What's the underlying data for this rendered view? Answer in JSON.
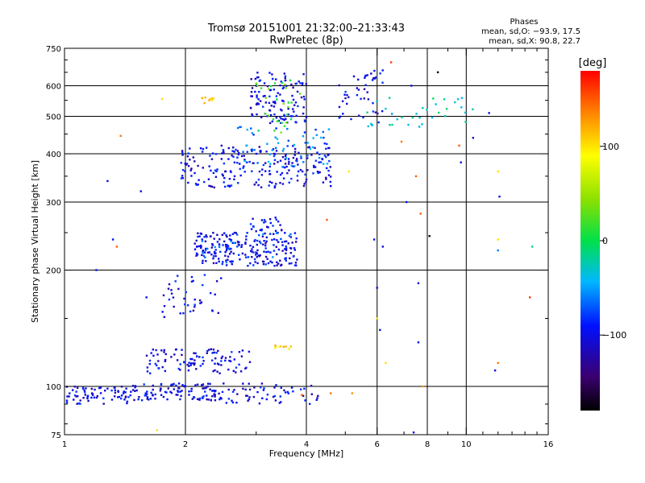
{
  "chart_data": {
    "type": "scatter",
    "title": "Tromsø 20151001 21:32:00–21:33:43",
    "subtitle": "RwPretec (8p)",
    "xlabel": "Frequency [MHz]",
    "ylabel": "Stationary phase Virtual Height [km]",
    "xscale": "log",
    "yscale": "log",
    "xlim": [
      1,
      16
    ],
    "ylim": [
      75,
      750
    ],
    "x_ticks": [
      1,
      2,
      4,
      6,
      8,
      10,
      16
    ],
    "x_tick_labels": [
      "1",
      "2",
      "4",
      "6",
      "8",
      "10",
      "16"
    ],
    "y_ticks": [
      75,
      100,
      200,
      300,
      400,
      500,
      600,
      750
    ],
    "y_tick_labels": [
      "75",
      "100",
      "200",
      "300",
      "400",
      "500",
      "600",
      "750"
    ],
    "x_gridlines": [
      2,
      4,
      6,
      8,
      10
    ],
    "y_gridlines": [
      100,
      200,
      300,
      400,
      500,
      600
    ],
    "grid": true,
    "phase_stats": {
      "heading": "Phases",
      "line_o": "mean, sd,O: −93.9, 17.5",
      "line_x": "mean, sd,X:  90.8, 22.7"
    },
    "colorbar": {
      "label": "[deg]",
      "range": [
        -180,
        180
      ],
      "ticks": [
        100,
        0,
        -100
      ],
      "tick_labels": [
        "100",
        "0",
        "−100"
      ]
    },
    "clusters": [
      {
        "x": [
          0.95,
          1.45
        ],
        "y": [
          90,
          100
        ],
        "phase": -100,
        "count": 80
      },
      {
        "x": [
          1.45,
          2.5
        ],
        "y": [
          92,
          102
        ],
        "phase": -100,
        "count": 110
      },
      {
        "x": [
          2.5,
          4.3
        ],
        "y": [
          90,
          102
        ],
        "phase": -100,
        "count": 55
      },
      {
        "x": [
          1.6,
          2.9
        ],
        "y": [
          108,
          125
        ],
        "phase": -100,
        "count": 100
      },
      {
        "x": [
          1.7,
          2.5
        ],
        "y": [
          150,
          195
        ],
        "phase": -100,
        "count": 40
      },
      {
        "x": [
          2.1,
          3.8
        ],
        "y": [
          205,
          250
        ],
        "phase": -100,
        "count": 200
      },
      {
        "x": [
          2.1,
          3.8
        ],
        "y": [
          205,
          250
        ],
        "phase": -70,
        "count": 40
      },
      {
        "x": [
          2.9,
          3.5
        ],
        "y": [
          250,
          275
        ],
        "phase": -100,
        "count": 25
      },
      {
        "x": [
          1.95,
          4.6
        ],
        "y": [
          325,
          420
        ],
        "phase": -100,
        "count": 220
      },
      {
        "x": [
          2.7,
          4.6
        ],
        "y": [
          370,
          470
        ],
        "phase": -60,
        "count": 60
      },
      {
        "x": [
          2.9,
          4.0
        ],
        "y": [
          480,
          650
        ],
        "phase": -100,
        "count": 120
      },
      {
        "x": [
          3.0,
          3.9
        ],
        "y": [
          450,
          620
        ],
        "phase": 20,
        "count": 30
      },
      {
        "x": [
          4.8,
          6.2
        ],
        "y": [
          480,
          660
        ],
        "phase": -100,
        "count": 45
      },
      {
        "x": [
          5.5,
          10.5
        ],
        "y": [
          470,
          560
        ],
        "phase": -30,
        "count": 35
      },
      {
        "x": [
          2.2,
          2.4
        ],
        "y": [
          540,
          560
        ],
        "phase": 100,
        "count": 8
      },
      {
        "x": [
          3.3,
          3.7
        ],
        "y": [
          125,
          128
        ],
        "phase": 110,
        "count": 10
      }
    ],
    "points": [
      {
        "x": 1.38,
        "y": 445,
        "phase": 140
      },
      {
        "x": 1.75,
        "y": 555,
        "phase": 100
      },
      {
        "x": 1.28,
        "y": 340,
        "phase": -100
      },
      {
        "x": 1.55,
        "y": 320,
        "phase": -100
      },
      {
        "x": 1.32,
        "y": 240,
        "phase": -90
      },
      {
        "x": 1.35,
        "y": 230,
        "phase": 150
      },
      {
        "x": 1.2,
        "y": 200,
        "phase": -100
      },
      {
        "x": 1.6,
        "y": 170,
        "phase": -100
      },
      {
        "x": 1.7,
        "y": 77,
        "phase": 100
      },
      {
        "x": 3.9,
        "y": 95,
        "phase": 150
      },
      {
        "x": 4.6,
        "y": 96,
        "phase": 140
      },
      {
        "x": 5.2,
        "y": 96,
        "phase": 130
      },
      {
        "x": 4.5,
        "y": 270,
        "phase": 150
      },
      {
        "x": 4.3,
        "y": 380,
        "phase": -100
      },
      {
        "x": 4.6,
        "y": 330,
        "phase": -100
      },
      {
        "x": 5.1,
        "y": 360,
        "phase": 100
      },
      {
        "x": 5.9,
        "y": 240,
        "phase": -100
      },
      {
        "x": 6.2,
        "y": 230,
        "phase": -100
      },
      {
        "x": 6.0,
        "y": 180,
        "phase": -100
      },
      {
        "x": 6.1,
        "y": 140,
        "phase": -100
      },
      {
        "x": 6.3,
        "y": 115,
        "phase": 100
      },
      {
        "x": 6.0,
        "y": 150,
        "phase": 100
      },
      {
        "x": 6.5,
        "y": 690,
        "phase": 160
      },
      {
        "x": 6.9,
        "y": 430,
        "phase": 140
      },
      {
        "x": 7.1,
        "y": 300,
        "phase": -100
      },
      {
        "x": 7.3,
        "y": 600,
        "phase": -100
      },
      {
        "x": 7.5,
        "y": 350,
        "phase": 150
      },
      {
        "x": 7.7,
        "y": 280,
        "phase": 150
      },
      {
        "x": 7.6,
        "y": 185,
        "phase": -100
      },
      {
        "x": 7.8,
        "y": 100,
        "phase": 130
      },
      {
        "x": 7.6,
        "y": 130,
        "phase": -100
      },
      {
        "x": 7.4,
        "y": 76,
        "phase": -100
      },
      {
        "x": 8.1,
        "y": 245,
        "phase": -170
      },
      {
        "x": 8.5,
        "y": 650,
        "phase": -170
      },
      {
        "x": 9.6,
        "y": 420,
        "phase": 150
      },
      {
        "x": 9.7,
        "y": 380,
        "phase": -100
      },
      {
        "x": 10.4,
        "y": 440,
        "phase": -100
      },
      {
        "x": 11.4,
        "y": 510,
        "phase": -100
      },
      {
        "x": 12.0,
        "y": 360,
        "phase": 100
      },
      {
        "x": 12.1,
        "y": 310,
        "phase": -100
      },
      {
        "x": 12.0,
        "y": 240,
        "phase": 100
      },
      {
        "x": 12.0,
        "y": 225,
        "phase": -60
      },
      {
        "x": 12.0,
        "y": 115,
        "phase": 140
      },
      {
        "x": 11.8,
        "y": 110,
        "phase": -100
      },
      {
        "x": 14.6,
        "y": 230,
        "phase": -10
      },
      {
        "x": 14.4,
        "y": 170,
        "phase": 160
      }
    ]
  }
}
